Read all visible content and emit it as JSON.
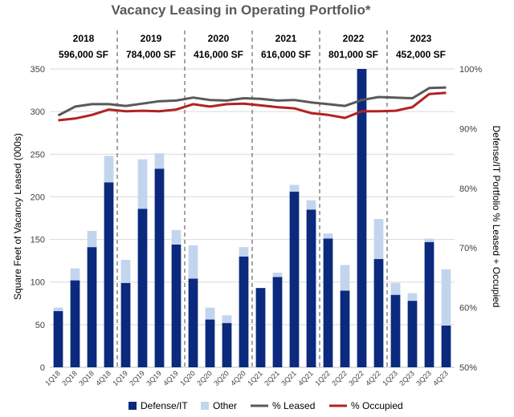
{
  "chart_data": {
    "type": "bar",
    "title": "Vacancy Leasing in Operating Portfolio*",
    "ylabel": "Square Feet of Vacancy Leased (000s)",
    "y2label": "Defense/IT Portfolio % Leased + Occupied",
    "ylim": [
      0,
      350
    ],
    "yticks": [
      "0",
      "50",
      "100",
      "150",
      "200",
      "250",
      "300",
      "350"
    ],
    "y2lim": [
      50,
      100
    ],
    "y2ticks": [
      "50%",
      "60%",
      "70%",
      "80%",
      "90%",
      "100%"
    ],
    "stacked": true,
    "categories": [
      "1Q18",
      "2Q18",
      "3Q18",
      "4Q18",
      "1Q19",
      "2Q19",
      "3Q19",
      "4Q19",
      "1Q20",
      "2Q20",
      "3Q20",
      "4Q20",
      "1Q21",
      "2Q21",
      "3Q21",
      "4Q21",
      "1Q22",
      "2Q22",
      "3Q22",
      "4Q22",
      "1Q23",
      "2Q23",
      "3Q23",
      "4Q23"
    ],
    "series": [
      {
        "name": "Defense/IT",
        "kind": "bar",
        "color": "#0b2a7d",
        "values": [
          66,
          102,
          141,
          217,
          99,
          186,
          233,
          144,
          104,
          56,
          52,
          130,
          93,
          106,
          206,
          185,
          151,
          90,
          350,
          127,
          85,
          78,
          147,
          49
        ]
      },
      {
        "name": "Other",
        "kind": "bar",
        "color": "#c3d5ee",
        "values": [
          4,
          14,
          19,
          31,
          27,
          58,
          18,
          17,
          39,
          14,
          9,
          11,
          0,
          5,
          8,
          11,
          6,
          30,
          0,
          47,
          14,
          9,
          4,
          66
        ]
      },
      {
        "name": "% Leased",
        "kind": "line",
        "axis": "right",
        "color": "#595959",
        "values": [
          92.2,
          93.7,
          94.1,
          94.1,
          93.8,
          94.2,
          94.6,
          94.7,
          95.2,
          94.8,
          94.7,
          95.1,
          95.0,
          94.7,
          94.8,
          94.4,
          94.1,
          93.8,
          94.8,
          95.3,
          95.2,
          95.1,
          96.8,
          96.9
        ]
      },
      {
        "name": "% Occupied",
        "kind": "line",
        "axis": "right",
        "color": "#b22222",
        "values": [
          91.4,
          91.7,
          92.3,
          93.2,
          92.9,
          93.0,
          92.9,
          93.2,
          94.1,
          93.7,
          94.1,
          94.2,
          93.9,
          93.6,
          93.4,
          92.6,
          92.3,
          91.8,
          92.9,
          92.9,
          93.0,
          93.6,
          95.8,
          96.0
        ]
      }
    ],
    "year_groups": [
      {
        "year": "2018",
        "total": "596,000 SF"
      },
      {
        "year": "2019",
        "total": "784,000 SF"
      },
      {
        "year": "2020",
        "total": "416,000 SF"
      },
      {
        "year": "2021",
        "total": "616,000 SF"
      },
      {
        "year": "2022",
        "total": "801,000 SF"
      },
      {
        "year": "2023",
        "total": "452,000 SF"
      }
    ],
    "legend": [
      "Defense/IT",
      "Other",
      "% Leased",
      "% Occupied"
    ],
    "legend_position": "bottom",
    "grid": "horizontal"
  }
}
